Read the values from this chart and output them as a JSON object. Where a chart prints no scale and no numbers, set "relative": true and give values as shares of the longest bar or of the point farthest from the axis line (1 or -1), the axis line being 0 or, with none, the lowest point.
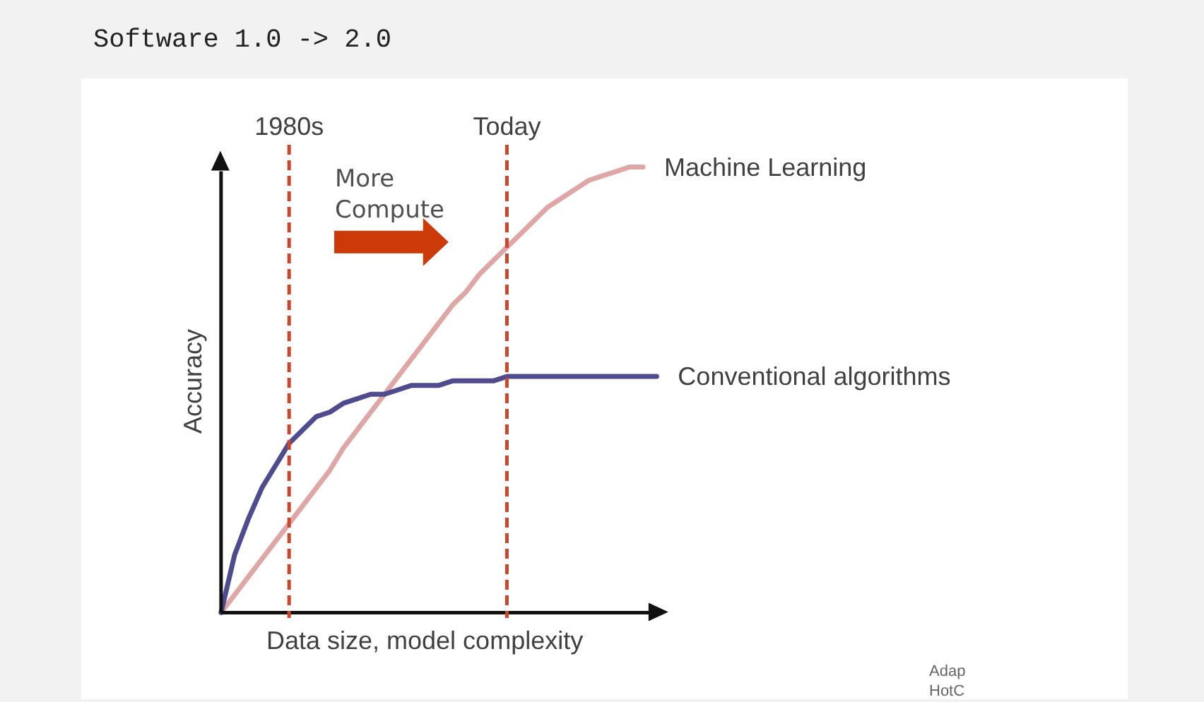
{
  "chart_data": {
    "type": "line",
    "title": "Software 1.0 -> 2.0",
    "xlabel": "Data size, model complexity",
    "ylabel": "Accuracy",
    "relative": true,
    "tick_labels": "x",
    "categories": [
      null,
      null,
      null,
      null,
      null,
      "1980s",
      null,
      null,
      null,
      null,
      null,
      null,
      null,
      null,
      null,
      null,
      null,
      null,
      null,
      null,
      null,
      "Today",
      null,
      null,
      null,
      null,
      null,
      null,
      null,
      null,
      null,
      null,
      null
    ],
    "series": [
      {
        "name": "Machine Learning",
        "color": "#dfa6a6",
        "values": [
          0,
          0.04,
          0.08,
          0.12,
          0.16,
          0.2,
          0.24,
          0.28,
          0.32,
          0.37,
          0.41,
          0.45,
          0.49,
          0.53,
          0.57,
          0.61,
          0.65,
          0.69,
          0.72,
          0.76,
          0.79,
          0.82,
          0.85,
          0.88,
          0.91,
          0.93,
          0.95,
          0.97,
          0.98,
          0.99,
          1,
          1,
          null
        ]
      },
      {
        "name": "Conventional algorithms",
        "color": "#4f4b8f",
        "values": [
          0,
          0.13,
          0.21,
          0.28,
          0.33,
          0.38,
          0.41,
          0.44,
          0.45,
          0.47,
          0.48,
          0.49,
          0.49,
          0.5,
          0.51,
          0.51,
          0.51,
          0.52,
          0.52,
          0.52,
          0.52,
          0.53,
          0.53,
          0.53,
          0.53,
          0.53,
          0.53,
          0.53,
          0.53,
          0.53,
          0.53,
          0.53,
          0.53
        ]
      }
    ],
    "ref_lines": [
      {
        "axis": "x",
        "value": "1980s",
        "color": "#c9472f",
        "line_style": "dashed"
      },
      {
        "axis": "x",
        "value": "Today",
        "color": "#c9472f",
        "line_style": "dashed"
      }
    ],
    "annotations": [
      "More Compute",
      "Adap",
      "HotC"
    ]
  }
}
